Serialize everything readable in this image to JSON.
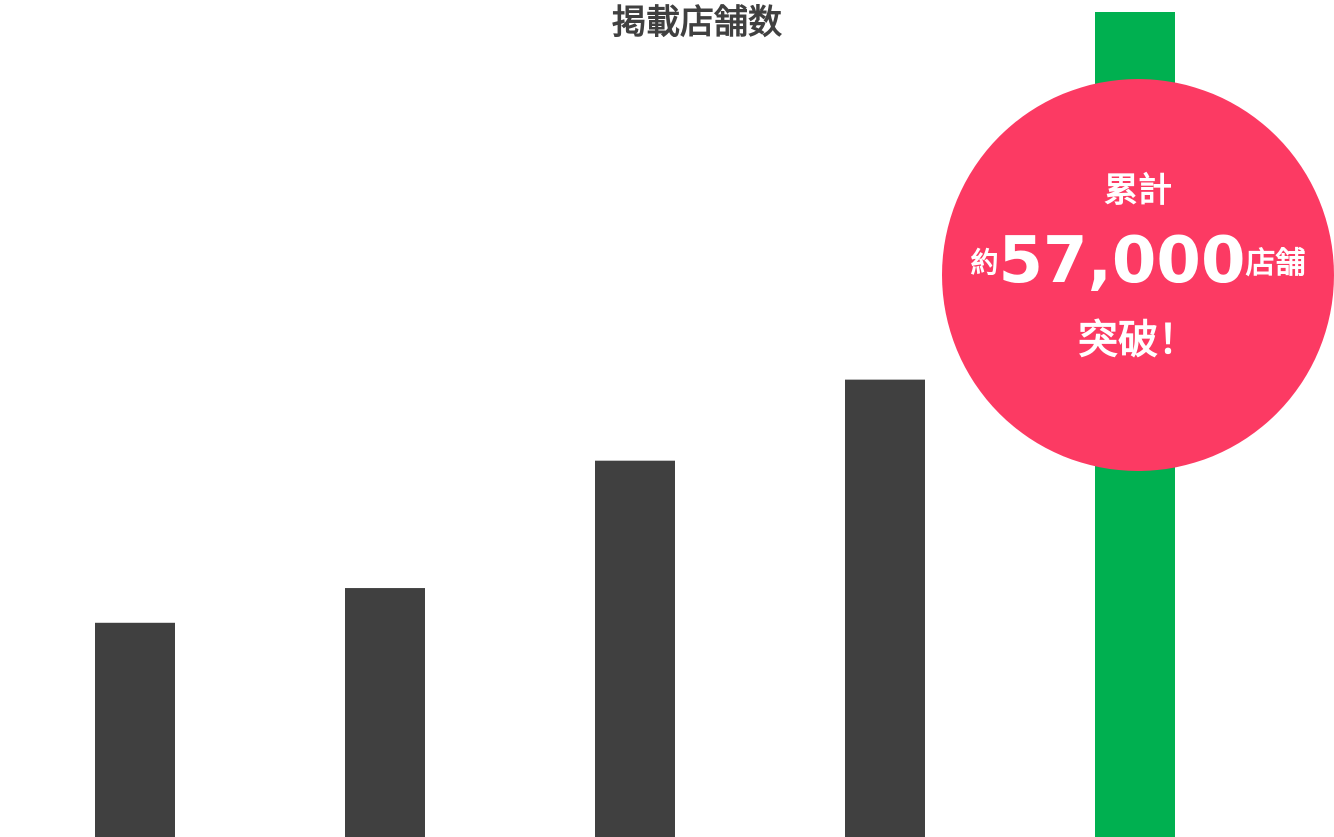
{
  "chart_data": {
    "type": "bar",
    "title": "掲載店舗数",
    "values": [
      14800,
      17200,
      26000,
      31600,
      57000
    ],
    "value_labels": [
      null,
      null,
      null,
      null,
      "57,000"
    ],
    "colors": [
      "#404040",
      "#404040",
      "#404040",
      "#404040",
      "#00b050"
    ],
    "ylim": [
      0,
      57000
    ],
    "annotation": {
      "top": "累計",
      "prefix": "約",
      "suffix": "店舗",
      "bottom": "突破！",
      "color": "#fc3a63"
    }
  }
}
